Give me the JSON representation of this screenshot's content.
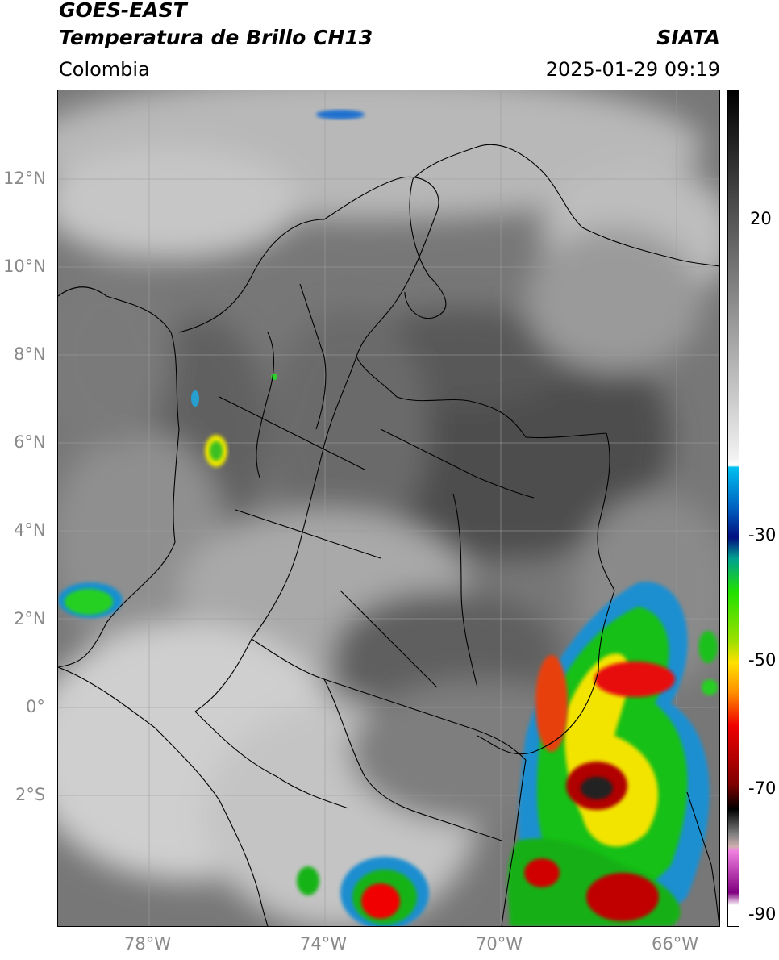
{
  "header": {
    "satellite": "GOES-EAST",
    "product": "Temperatura de Brillo CH13",
    "region": "Colombia",
    "source": "SIATA",
    "timestamp": "2025-01-29 09:19"
  },
  "map": {
    "lat_ticks": [
      "12°N",
      "10°N",
      "8°N",
      "6°N",
      "4°N",
      "2°N",
      "0°",
      "2°S"
    ],
    "lon_ticks": [
      "78°W",
      "74°W",
      "70°W",
      "66°W"
    ],
    "lon_range": [
      -80,
      -65
    ],
    "lat_range": [
      -5,
      14
    ]
  },
  "colorbar": {
    "ticks": [
      "20",
      "-30",
      "-50",
      "-70",
      "-90"
    ],
    "range": [
      -92,
      37
    ]
  },
  "colors": {
    "cloud_cold": "#ff0000",
    "cloud_mid": "#00c800",
    "cloud_edge": "#00a0e0",
    "background_gray": "#6e6e6e"
  }
}
